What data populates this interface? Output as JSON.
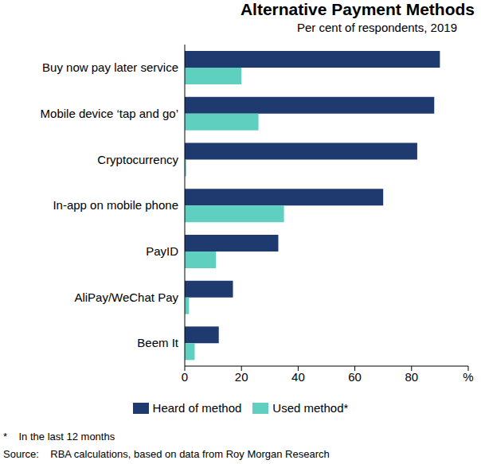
{
  "chart_data": {
    "type": "bar",
    "orientation": "horizontal",
    "title": "Alternative Payment Methods",
    "subtitle": "Per cent of respondents, 2019",
    "categories": [
      "Buy now pay later service",
      "Mobile device ‘tap and go’",
      "Cryptocurrency",
      "In-app on mobile phone",
      "PayID",
      "AliPay/WeChat Pay",
      "Beem It"
    ],
    "series": [
      {
        "name": "Heard of method",
        "color": "#1e3a6e",
        "values": [
          90,
          88,
          82,
          70,
          33,
          17,
          12
        ]
      },
      {
        "name": "Used method*",
        "color": "#5fcfc0",
        "values": [
          20,
          26,
          0.5,
          35,
          11,
          1.5,
          3.5
        ]
      }
    ],
    "xlim": [
      0,
      100
    ],
    "xticks": [
      0,
      20,
      40,
      60,
      80,
      {
        "value": 100,
        "label": "%"
      }
    ],
    "grid": false,
    "legend": "bottom",
    "footnote": "*    In the last 12 months",
    "source": "Source:    RBA calculations, based on data from Roy Morgan Research"
  }
}
